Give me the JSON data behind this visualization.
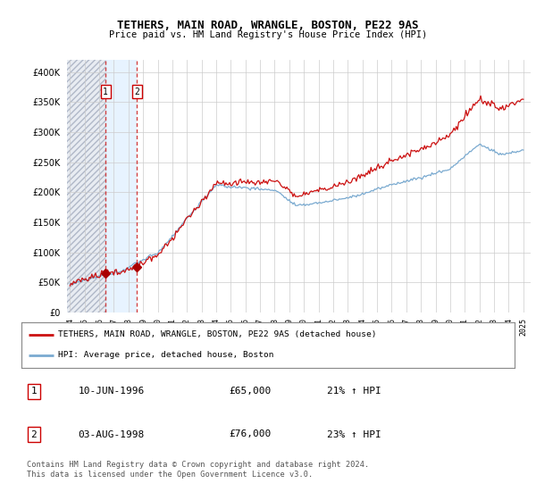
{
  "title": "TETHERS, MAIN ROAD, WRANGLE, BOSTON, PE22 9AS",
  "subtitle": "Price paid vs. HM Land Registry's House Price Index (HPI)",
  "legend_line1": "TETHERS, MAIN ROAD, WRANGLE, BOSTON, PE22 9AS (detached house)",
  "legend_line2": "HPI: Average price, detached house, Boston",
  "table_rows": [
    {
      "num": "1",
      "date": "10-JUN-1996",
      "price": "£65,000",
      "hpi": "21% ↑ HPI"
    },
    {
      "num": "2",
      "date": "03-AUG-1998",
      "price": "£76,000",
      "hpi": "23% ↑ HPI"
    }
  ],
  "footnote": "Contains HM Land Registry data © Crown copyright and database right 2024.\nThis data is licensed under the Open Government Licence v3.0.",
  "sale1_year": 1996.44,
  "sale1_price": 65000,
  "sale2_year": 1998.58,
  "sale2_price": 76000,
  "hpi_color": "#7aaad0",
  "price_color": "#cc1111",
  "sale_marker_color": "#aa0000",
  "sale_vline_color": "#cc2222",
  "ylim_max": 420000,
  "xlim_min": 1993.8,
  "xlim_max": 2025.5,
  "chart_bg": "#f0f4fa",
  "hatch_bg": "#d8dde8"
}
